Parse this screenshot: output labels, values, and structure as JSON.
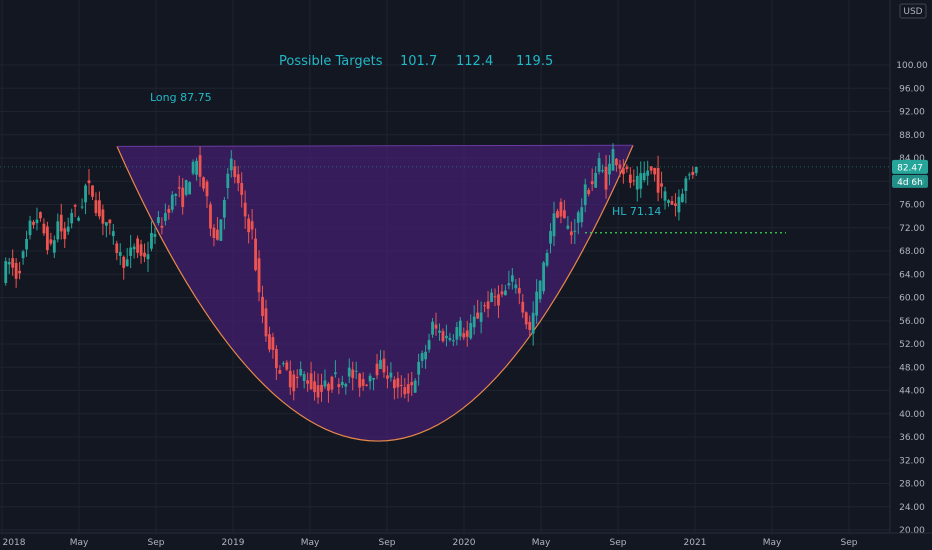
{
  "chart_data": {
    "type": "candlestick",
    "currency": "USD",
    "y_ticks": [
      "20.00",
      "24.00",
      "28.00",
      "32.00",
      "36.00",
      "40.00",
      "44.00",
      "48.00",
      "52.00",
      "56.00",
      "60.00",
      "64.00",
      "68.00",
      "72.00",
      "76.00",
      "80.00",
      "84.00",
      "88.00",
      "92.00",
      "96.00",
      "100.00"
    ],
    "ylim": [
      20,
      104
    ],
    "x_ticks": [
      {
        "label": "2018",
        "date": "2018-01"
      },
      {
        "label": "May",
        "date": "2018-05"
      },
      {
        "label": "Sep",
        "date": "2018-09"
      },
      {
        "label": "2019",
        "date": "2019-01"
      },
      {
        "label": "May",
        "date": "2019-05"
      },
      {
        "label": "Sep",
        "date": "2019-09"
      },
      {
        "label": "2020",
        "date": "2020-01"
      },
      {
        "label": "May",
        "date": "2020-05"
      },
      {
        "label": "Sep",
        "date": "2020-09"
      },
      {
        "label": "2021",
        "date": "2021-01"
      },
      {
        "label": "May",
        "date": "2021-05"
      },
      {
        "label": "Sep",
        "date": "2021-09"
      }
    ],
    "last_price": "82.47",
    "countdown": "4d 6h",
    "annotations": {
      "targets_label": "Possible Targets",
      "targets": [
        "101.7",
        "112.4",
        "119.5"
      ],
      "long_label": "Long 87.75",
      "hl_label": "HL 71.14",
      "hl_value": 71.14
    },
    "cup_pattern": {
      "left_rim": 86,
      "bottom": 35.3,
      "right_rim": 86.2
    },
    "price_path": [
      [
        0,
        64
      ],
      [
        2,
        66
      ],
      [
        4,
        64
      ],
      [
        6,
        67
      ],
      [
        8,
        72
      ],
      [
        10,
        74
      ],
      [
        12,
        71
      ],
      [
        14,
        68
      ],
      [
        16,
        73
      ],
      [
        18,
        70
      ],
      [
        20,
        75
      ],
      [
        22,
        74
      ],
      [
        24,
        79
      ],
      [
        26,
        78
      ],
      [
        28,
        74
      ],
      [
        30,
        73
      ],
      [
        32,
        70
      ],
      [
        34,
        67
      ],
      [
        36,
        66
      ],
      [
        38,
        69
      ],
      [
        40,
        67
      ],
      [
        42,
        68
      ],
      [
        44,
        72
      ],
      [
        46,
        73
      ],
      [
        48,
        76
      ],
      [
        50,
        78
      ],
      [
        52,
        77
      ],
      [
        54,
        81
      ],
      [
        56,
        83
      ],
      [
        58,
        79
      ],
      [
        60,
        73
      ],
      [
        62,
        70
      ],
      [
        64,
        78
      ],
      [
        66,
        83
      ],
      [
        68,
        79
      ],
      [
        70,
        74
      ],
      [
        72,
        71
      ],
      [
        74,
        60
      ],
      [
        76,
        54
      ],
      [
        78,
        50
      ],
      [
        80,
        48
      ],
      [
        82,
        47
      ],
      [
        84,
        45
      ],
      [
        86,
        47
      ],
      [
        88,
        46
      ],
      [
        90,
        44
      ],
      [
        92,
        44
      ],
      [
        94,
        45
      ],
      [
        96,
        46
      ],
      [
        98,
        46
      ],
      [
        100,
        47
      ],
      [
        102,
        46
      ],
      [
        104,
        45
      ],
      [
        106,
        47
      ],
      [
        108,
        48
      ],
      [
        110,
        48
      ],
      [
        112,
        46
      ],
      [
        114,
        44
      ],
      [
        116,
        44
      ],
      [
        118,
        45
      ],
      [
        120,
        48
      ],
      [
        122,
        51
      ],
      [
        124,
        55
      ],
      [
        126,
        54
      ],
      [
        128,
        53
      ],
      [
        130,
        54
      ],
      [
        132,
        55
      ],
      [
        134,
        53
      ],
      [
        136,
        56
      ],
      [
        138,
        58
      ],
      [
        140,
        59
      ],
      [
        142,
        60
      ],
      [
        144,
        60
      ],
      [
        146,
        62
      ],
      [
        148,
        63
      ],
      [
        150,
        58
      ],
      [
        152,
        54
      ],
      [
        154,
        60
      ],
      [
        156,
        65
      ],
      [
        158,
        72
      ],
      [
        160,
        75
      ],
      [
        162,
        73
      ],
      [
        164,
        71
      ],
      [
        166,
        74
      ],
      [
        168,
        78
      ],
      [
        170,
        80
      ],
      [
        172,
        83
      ],
      [
        174,
        80
      ],
      [
        176,
        85
      ],
      [
        178,
        83
      ],
      [
        180,
        81
      ],
      [
        182,
        79
      ],
      [
        184,
        80
      ],
      [
        186,
        82
      ],
      [
        188,
        81
      ],
      [
        190,
        78
      ],
      [
        192,
        77
      ],
      [
        194,
        76
      ],
      [
        196,
        79
      ],
      [
        198,
        81
      ],
      [
        200,
        82.47
      ]
    ]
  }
}
